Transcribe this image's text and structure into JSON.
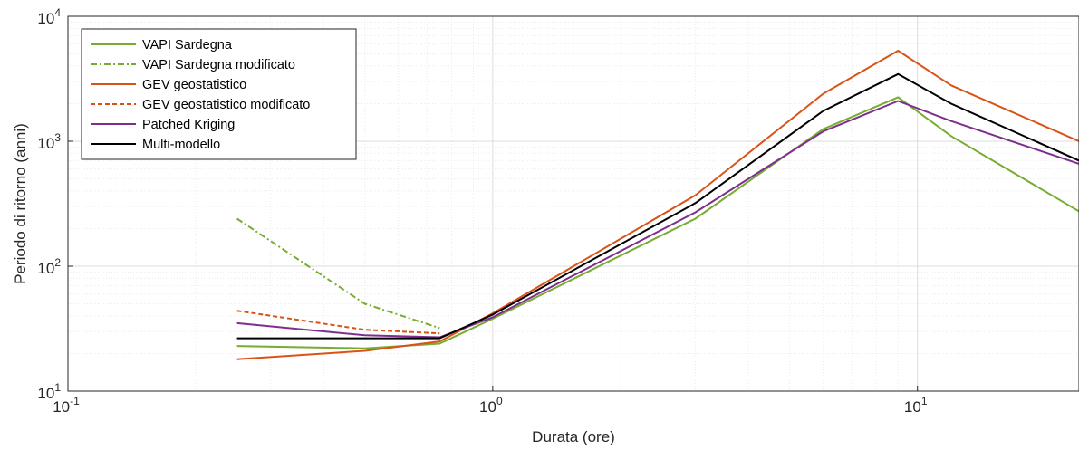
{
  "chart_data": {
    "type": "line",
    "xlabel": "Durata (ore)",
    "ylabel": "Periodo di ritorno (anni)",
    "xscale": "log",
    "yscale": "log",
    "xlim": [
      0.1,
      24
    ],
    "ylim": [
      10,
      10000
    ],
    "x_ticks": [
      {
        "base": "10",
        "exp": "-1",
        "value": 0.1
      },
      {
        "base": "10",
        "exp": "0",
        "value": 1
      },
      {
        "base": "10",
        "exp": "1",
        "value": 10
      }
    ],
    "y_ticks": [
      {
        "base": "10",
        "exp": "1",
        "value": 10
      },
      {
        "base": "10",
        "exp": "2",
        "value": 100
      },
      {
        "base": "10",
        "exp": "3",
        "value": 1000
      },
      {
        "base": "10",
        "exp": "4",
        "value": 10000
      }
    ],
    "grid": true,
    "minor_grid": true,
    "legend_position": "top-left",
    "series": [
      {
        "name": "VAPI Sardegna",
        "color": "#77AC30",
        "dash": "solid",
        "x": [
          0.25,
          0.5,
          0.75,
          1,
          3,
          6,
          9,
          12,
          24
        ],
        "y": [
          23,
          22,
          24,
          38,
          240,
          1250,
          2250,
          1100,
          275
        ]
      },
      {
        "name": "VAPI Sardegna modificato",
        "color": "#77AC30",
        "dash": "dashdot",
        "x": [
          0.25,
          0.5,
          0.75
        ],
        "y": [
          240,
          50,
          32
        ]
      },
      {
        "name": "GEV geostatistico",
        "color": "#D95319",
        "dash": "solid",
        "x": [
          0.25,
          0.5,
          0.75,
          1,
          3,
          6,
          9,
          12,
          24
        ],
        "y": [
          18,
          21,
          25,
          42,
          370,
          2400,
          5300,
          2800,
          1000
        ]
      },
      {
        "name": "GEV geostatistico modificato",
        "color": "#D95319",
        "dash": "dashed",
        "x": [
          0.25,
          0.5,
          0.75
        ],
        "y": [
          44,
          31,
          29
        ]
      },
      {
        "name": "Patched Kriging",
        "color": "#7E2F8E",
        "dash": "solid",
        "x": [
          0.25,
          0.5,
          0.75,
          1,
          3,
          6,
          9,
          12,
          24
        ],
        "y": [
          35,
          28,
          27,
          39,
          270,
          1200,
          2100,
          1450,
          660
        ]
      },
      {
        "name": "Multi-modello",
        "color": "#000000",
        "dash": "solid",
        "x": [
          0.25,
          0.5,
          0.75,
          1,
          3,
          6,
          9,
          12,
          24
        ],
        "y": [
          26.5,
          26.5,
          26.5,
          41,
          320,
          1750,
          3450,
          2000,
          700
        ]
      }
    ]
  }
}
